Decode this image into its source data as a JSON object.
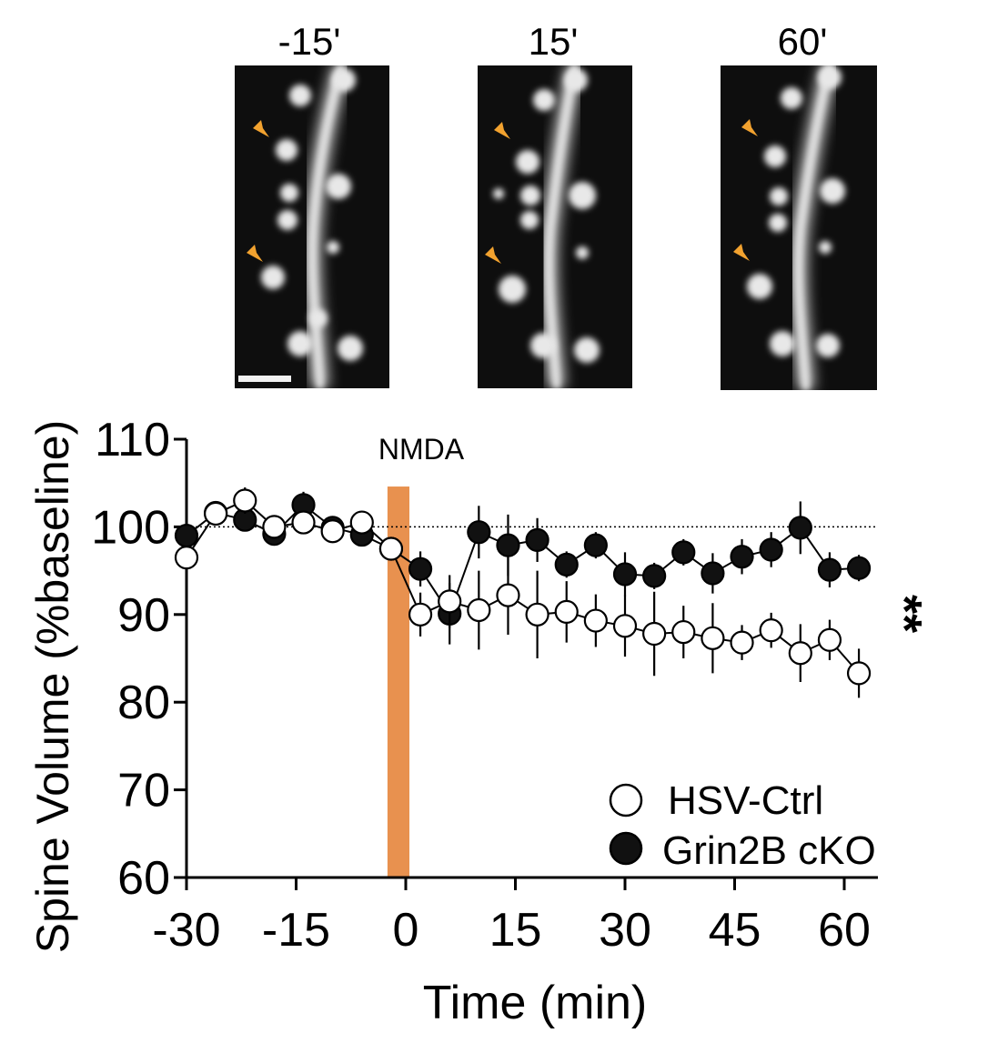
{
  "panels": [
    {
      "label": "-15'"
    },
    {
      "label": "15'"
    },
    {
      "label": "60'"
    }
  ],
  "colors": {
    "stimulus": "#E8914F",
    "arrowhead": "#F2A22F",
    "line": "#000000",
    "hsv_fill": "#ffffff",
    "cko_fill": "#111111"
  },
  "chart_data": {
    "type": "line",
    "title": "",
    "xlabel": "Time (min)",
    "ylabel": "Spine Volume (%baseline)",
    "xlim": [
      -30,
      63
    ],
    "ylim": [
      60,
      110
    ],
    "xticks": [
      -30,
      -15,
      0,
      15,
      30,
      45,
      60
    ],
    "yticks": [
      60,
      70,
      80,
      90,
      100,
      110
    ],
    "baseline": 100,
    "stimulus": {
      "label": "NMDA",
      "start": -2.5,
      "end": 0.5
    },
    "significance": "**",
    "legend_position": "bottom-right",
    "series": [
      {
        "name": "HSV-Ctrl",
        "marker": "open-circle",
        "x": [
          -30,
          -26,
          -22,
          -18,
          -14,
          -10,
          -6,
          -2,
          2,
          6,
          10,
          14,
          18,
          22,
          26,
          30,
          34,
          38,
          42,
          46,
          50,
          54,
          58,
          62
        ],
        "values": [
          96.5,
          101.5,
          103.0,
          100.0,
          100.5,
          99.5,
          100.5,
          97.5,
          90.0,
          91.5,
          90.5,
          92.2,
          90.0,
          90.3,
          89.3,
          88.7,
          87.8,
          88.0,
          87.3,
          86.8,
          88.2,
          85.6,
          87.1,
          83.3
        ],
        "errors": [
          0.8,
          1.0,
          1.5,
          1.0,
          1.2,
          0.8,
          0.8,
          1.0,
          2.5,
          3.0,
          4.5,
          4.5,
          5.0,
          3.5,
          3.0,
          3.5,
          4.8,
          3.0,
          4.0,
          2.0,
          2.0,
          3.3,
          2.3,
          2.8
        ]
      },
      {
        "name": "Grin2B cKO",
        "marker": "filled-circle",
        "x": [
          -30,
          -26,
          -22,
          -18,
          -14,
          -10,
          -6,
          -2,
          2,
          6,
          10,
          14,
          18,
          22,
          26,
          30,
          34,
          38,
          42,
          46,
          50,
          54,
          58,
          62
        ],
        "values": [
          99.0,
          101.6,
          100.8,
          99.2,
          102.5,
          99.9,
          99.1,
          97.5,
          95.2,
          90.1,
          99.4,
          97.9,
          98.5,
          95.7,
          97.9,
          94.6,
          94.4,
          97.1,
          94.7,
          96.6,
          97.4,
          99.9,
          95.1,
          95.3
        ],
        "errors": [
          0.8,
          1.0,
          1.0,
          0.8,
          1.5,
          0.8,
          1.0,
          1.0,
          2.0,
          3.5,
          3.0,
          3.5,
          2.5,
          1.5,
          1.5,
          2.5,
          1.5,
          1.5,
          2.3,
          2.0,
          2.0,
          3.0,
          2.0,
          1.5
        ]
      }
    ]
  }
}
